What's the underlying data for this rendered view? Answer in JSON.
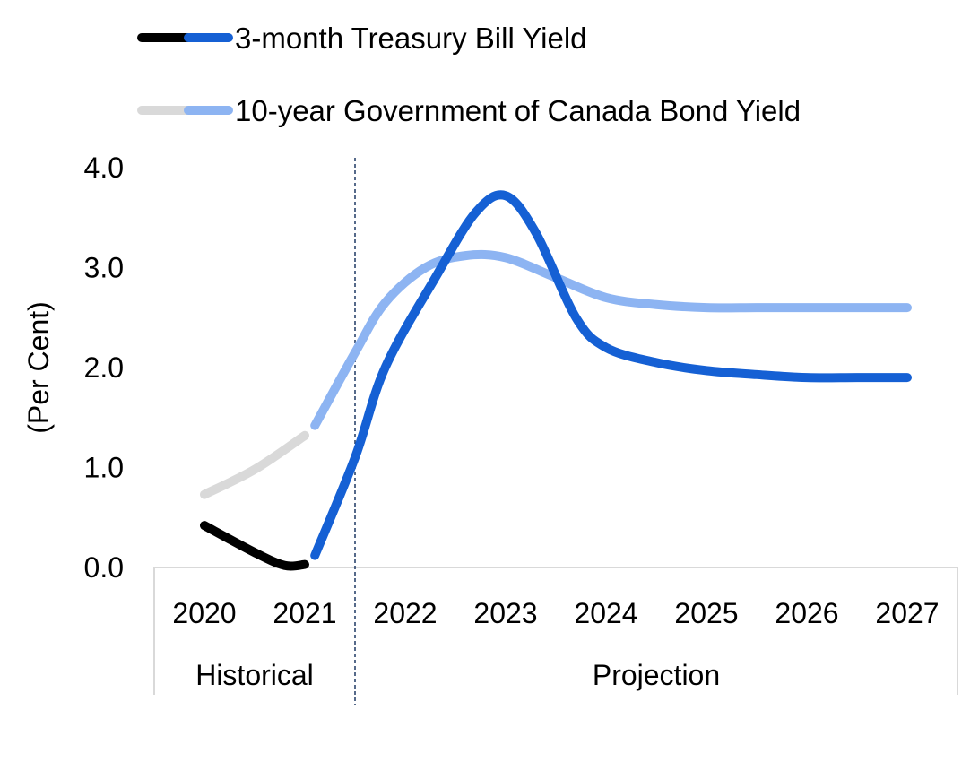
{
  "chart_data": {
    "type": "line",
    "ylabel": "(Per Cent)",
    "ylim": [
      0,
      4
    ],
    "yticks": [
      "0.0",
      "1.0",
      "2.0",
      "3.0",
      "4.0"
    ],
    "categories": [
      "2020",
      "2021",
      "2022",
      "2023",
      "2024",
      "2025",
      "2026",
      "2027"
    ],
    "groups": [
      {
        "label": "Historical",
        "from": "2020",
        "to": "2021"
      },
      {
        "label": "Projection",
        "from": "2022",
        "to": "2027"
      }
    ],
    "divider_after": "2021",
    "legend_position": "top-left",
    "series": [
      {
        "name": "3-month Treasury Bill Yield",
        "historical_color": "#000000",
        "projection_color": "#1560d4",
        "points": [
          {
            "x": 2020.0,
            "y": 0.42,
            "period": "historical"
          },
          {
            "x": 2020.5,
            "y": 0.15,
            "period": "historical"
          },
          {
            "x": 2020.8,
            "y": 0.02,
            "period": "historical"
          },
          {
            "x": 2021.0,
            "y": 0.03,
            "period": "historical"
          },
          {
            "x": 2021.1,
            "y": 0.12,
            "period": "projection"
          },
          {
            "x": 2021.5,
            "y": 1.1,
            "period": "projection"
          },
          {
            "x": 2021.8,
            "y": 2.0,
            "period": "projection"
          },
          {
            "x": 2022.3,
            "y": 2.9,
            "period": "projection"
          },
          {
            "x": 2022.7,
            "y": 3.55,
            "period": "projection"
          },
          {
            "x": 2023.0,
            "y": 3.72,
            "period": "projection"
          },
          {
            "x": 2023.3,
            "y": 3.35,
            "period": "projection"
          },
          {
            "x": 2023.7,
            "y": 2.5,
            "period": "projection"
          },
          {
            "x": 2024.0,
            "y": 2.2,
            "period": "projection"
          },
          {
            "x": 2024.5,
            "y": 2.05,
            "period": "projection"
          },
          {
            "x": 2025.0,
            "y": 1.97,
            "period": "projection"
          },
          {
            "x": 2025.5,
            "y": 1.93,
            "period": "projection"
          },
          {
            "x": 2026.0,
            "y": 1.9,
            "period": "projection"
          },
          {
            "x": 2026.5,
            "y": 1.9,
            "period": "projection"
          },
          {
            "x": 2027.0,
            "y": 1.9,
            "period": "projection"
          }
        ]
      },
      {
        "name": "10-year Government of Canada Bond Yield",
        "historical_color": "#d9d9d9",
        "projection_color": "#8db4f2",
        "points": [
          {
            "x": 2020.0,
            "y": 0.73,
            "period": "historical"
          },
          {
            "x": 2020.5,
            "y": 0.98,
            "period": "historical"
          },
          {
            "x": 2021.0,
            "y": 1.32,
            "period": "historical"
          },
          {
            "x": 2021.1,
            "y": 1.42,
            "period": "projection"
          },
          {
            "x": 2021.5,
            "y": 2.15,
            "period": "projection"
          },
          {
            "x": 2021.8,
            "y": 2.65,
            "period": "projection"
          },
          {
            "x": 2022.2,
            "y": 3.0,
            "period": "projection"
          },
          {
            "x": 2022.6,
            "y": 3.12,
            "period": "projection"
          },
          {
            "x": 2023.0,
            "y": 3.1,
            "period": "projection"
          },
          {
            "x": 2023.5,
            "y": 2.9,
            "period": "projection"
          },
          {
            "x": 2024.0,
            "y": 2.7,
            "period": "projection"
          },
          {
            "x": 2024.5,
            "y": 2.63,
            "period": "projection"
          },
          {
            "x": 2025.0,
            "y": 2.6,
            "period": "projection"
          },
          {
            "x": 2025.5,
            "y": 2.6,
            "period": "projection"
          },
          {
            "x": 2026.0,
            "y": 2.6,
            "period": "projection"
          },
          {
            "x": 2026.5,
            "y": 2.6,
            "period": "projection"
          },
          {
            "x": 2027.0,
            "y": 2.6,
            "period": "projection"
          }
        ]
      }
    ]
  }
}
